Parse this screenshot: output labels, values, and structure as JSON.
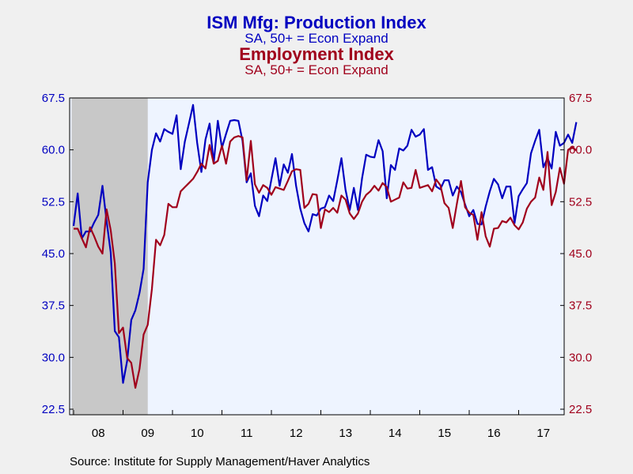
{
  "chart_data": {
    "type": "line",
    "titles": [
      {
        "main": "ISM Mfg: Production Index",
        "sub": "SA, 50+ = Econ Expand",
        "color": "#0000c0"
      },
      {
        "main": "Employment Index",
        "sub": "SA, 50+ = Econ Expand",
        "color": "#a0001c"
      }
    ],
    "x_labels": [
      "08",
      "09",
      "10",
      "11",
      "12",
      "13",
      "14",
      "15",
      "16",
      "17"
    ],
    "x_start_year": 2007.92,
    "x_end_year": 2017.92,
    "recession": {
      "start": 2007.96,
      "end": 2009.5,
      "color": "#c8c8c8"
    },
    "y_ticks": [
      "67.5",
      "60.0",
      "52.5",
      "45.0",
      "37.5",
      "30.0",
      "22.5"
    ],
    "ylim": [
      22.5,
      67.5
    ],
    "left_axis_color": "#0000c0",
    "right_axis_color": "#a0001c",
    "plot_background": "#eef4ff",
    "series": [
      {
        "name": "ISM Mfg: Production Index",
        "axis": "left",
        "color": "#0000c0",
        "values": [
          49.0,
          53.7,
          47.2,
          48.2,
          48.2,
          49.5,
          50.6,
          54.8,
          49.7,
          45.2,
          33.8,
          32.9,
          26.3,
          29.5,
          35.4,
          36.8,
          39.3,
          42.8,
          55.3,
          60.0,
          62.4,
          61.2,
          63.0,
          62.6,
          62.3,
          65.0,
          57.2,
          61.2,
          63.8,
          66.5,
          61.0,
          56.8,
          61.5,
          63.8,
          58.1,
          64.2,
          60.3,
          62.3,
          64.2,
          64.3,
          64.2,
          61.3,
          55.3,
          56.6,
          51.9,
          50.4,
          53.4,
          52.6,
          55.7,
          58.8,
          54.8,
          57.9,
          56.7,
          59.4,
          54.8,
          51.5,
          49.4,
          48.2,
          50.7,
          50.5,
          51.5,
          51.7,
          53.4,
          52.6,
          55.6,
          58.8,
          54.2,
          51.3,
          54.5,
          51.3,
          55.9,
          59.3,
          59.0,
          58.9,
          61.4,
          59.8,
          53.0,
          57.8,
          57.1,
          60.2,
          59.9,
          60.6,
          62.9,
          61.9,
          62.2,
          63.0,
          57.1,
          57.5,
          54.7,
          54.3,
          55.6,
          55.6,
          53.4,
          54.7,
          53.9,
          52.1,
          50.4,
          51.3,
          49.3,
          49.2,
          51.8,
          54.0,
          55.8,
          55.0,
          53.0,
          54.7,
          54.7,
          49.4,
          53.3,
          54.3,
          55.2,
          59.5,
          61.3,
          62.9,
          57.5,
          58.8,
          57.3,
          62.6,
          60.6,
          61.0,
          62.2,
          61.0,
          64.0
        ]
      },
      {
        "name": "Employment Index",
        "axis": "right",
        "color": "#a0001c",
        "values": [
          48.6,
          48.6,
          47.2,
          45.9,
          48.8,
          47.5,
          46.0,
          45.0,
          51.4,
          48.4,
          43.6,
          33.5,
          34.3,
          29.9,
          29.2,
          25.6,
          28.3,
          33.3,
          34.7,
          39.9,
          47.0,
          46.2,
          47.7,
          52.2,
          51.7,
          51.7,
          54.0,
          54.6,
          55.2,
          55.8,
          56.8,
          58.0,
          57.3,
          60.7,
          58.0,
          58.4,
          60.6,
          58.0,
          61.2,
          61.8,
          62.0,
          61.8,
          55.6,
          61.3,
          55.0,
          53.8,
          54.9,
          54.5,
          53.5,
          54.6,
          54.4,
          54.2,
          55.5,
          56.9,
          57.2,
          57.1,
          51.6,
          52.2,
          53.6,
          53.5,
          48.7,
          51.4,
          51.0,
          51.6,
          50.9,
          53.4,
          52.8,
          50.8,
          50.0,
          50.8,
          52.5,
          53.5,
          54.0,
          54.8,
          54.1,
          55.2,
          54.6,
          52.5,
          52.8,
          53.1,
          55.3,
          54.4,
          54.5,
          57.1,
          54.5,
          54.7,
          54.9,
          54.0,
          55.7,
          54.9,
          52.3,
          51.6,
          48.7,
          52.2,
          55.5,
          51.7,
          50.9,
          50.6,
          47.0,
          51.0,
          47.5,
          46.0,
          48.6,
          48.7,
          49.7,
          49.5,
          50.2,
          49.1,
          48.5,
          49.5,
          51.5,
          52.5,
          53.1,
          56.0,
          54.2,
          59.7,
          52.0,
          53.9,
          57.4,
          55.1,
          60.0,
          60.4,
          59.9
        ]
      }
    ],
    "source": "Source:  Institute for Supply Management/Haver Analytics"
  }
}
